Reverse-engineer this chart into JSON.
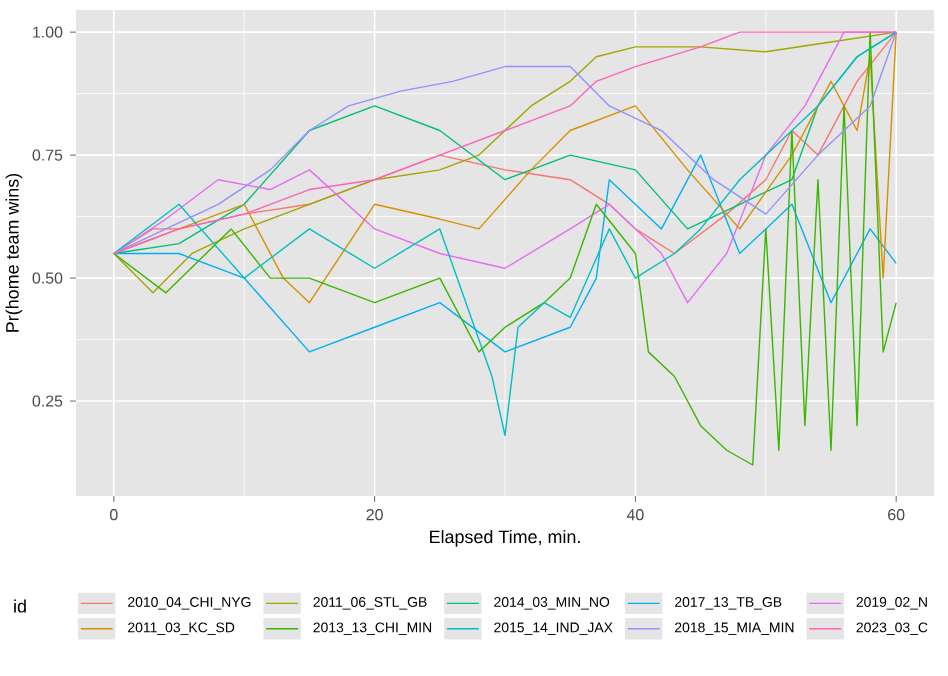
{
  "chart_data": {
    "type": "line",
    "xlabel": "Elapsed Time, min.",
    "ylabel": "Pr(home team wins)",
    "legend_title": "id",
    "xlim": [
      -2.9,
      62.9
    ],
    "ylim": [
      0.057,
      1.045
    ],
    "xticks": [
      0,
      20,
      40,
      60
    ],
    "yticks": [
      {
        "value": 0.25,
        "label": "0.25"
      },
      {
        "value": 0.5,
        "label": "0.50"
      },
      {
        "value": 0.75,
        "label": "0.75"
      },
      {
        "value": 1,
        "label": "1.00"
      }
    ],
    "grid": true,
    "legend": "bottom",
    "line_style": "solid",
    "series": [
      {
        "name": "2010_04_CHI_NYG",
        "color": "#F8766D",
        "x": [
          0,
          3,
          5,
          10,
          15,
          20,
          25,
          30,
          35,
          38,
          40,
          43,
          47,
          50,
          52,
          54,
          57,
          60
        ],
        "values": [
          0.55,
          0.6,
          0.6,
          0.63,
          0.65,
          0.7,
          0.75,
          0.72,
          0.7,
          0.65,
          0.6,
          0.55,
          0.63,
          0.7,
          0.8,
          0.75,
          0.9,
          1.0
        ]
      },
      {
        "name": "2011_03_KC_SD",
        "color": "#D89000",
        "x": [
          0,
          5,
          10,
          13,
          15,
          20,
          25,
          28,
          32,
          35,
          40,
          44,
          48,
          52,
          55,
          57,
          58,
          59,
          60
        ],
        "values": [
          0.55,
          0.6,
          0.65,
          0.5,
          0.45,
          0.65,
          0.62,
          0.6,
          0.72,
          0.8,
          0.85,
          0.72,
          0.6,
          0.75,
          0.9,
          0.8,
          0.95,
          0.5,
          1.0
        ]
      },
      {
        "name": "2011_06_STL_GB",
        "color": "#A3A500",
        "x": [
          0,
          3,
          6,
          10,
          15,
          20,
          25,
          28,
          32,
          35,
          37,
          40,
          45,
          50,
          55,
          60
        ],
        "values": [
          0.55,
          0.47,
          0.55,
          0.6,
          0.65,
          0.7,
          0.72,
          0.75,
          0.85,
          0.9,
          0.95,
          0.97,
          0.97,
          0.96,
          0.98,
          1.0
        ]
      },
      {
        "name": "2013_13_CHI_MIN",
        "color": "#39B600",
        "x": [
          0,
          4,
          9,
          12,
          15,
          20,
          25,
          28,
          30,
          33,
          35,
          37,
          40,
          41,
          43,
          45,
          47,
          49,
          50,
          51,
          52,
          53,
          54,
          55,
          56,
          57,
          58,
          59,
          60
        ],
        "values": [
          0.55,
          0.47,
          0.6,
          0.5,
          0.5,
          0.45,
          0.5,
          0.35,
          0.4,
          0.45,
          0.5,
          0.65,
          0.55,
          0.35,
          0.3,
          0.2,
          0.15,
          0.12,
          0.6,
          0.15,
          0.8,
          0.2,
          0.7,
          0.15,
          0.85,
          0.2,
          1.0,
          0.35,
          0.45
        ]
      },
      {
        "name": "2014_03_MIN_NO",
        "color": "#00BF7D",
        "x": [
          0,
          5,
          10,
          15,
          20,
          25,
          30,
          35,
          40,
          44,
          48,
          52,
          54,
          57,
          60
        ],
        "values": [
          0.55,
          0.57,
          0.65,
          0.8,
          0.85,
          0.8,
          0.7,
          0.75,
          0.72,
          0.6,
          0.65,
          0.7,
          0.85,
          0.95,
          1.0
        ]
      },
      {
        "name": "2015_14_IND_JAX",
        "color": "#00BFC4",
        "x": [
          0,
          5,
          10,
          15,
          20,
          25,
          29,
          30,
          31,
          33,
          35,
          38,
          40,
          43,
          45,
          48,
          52,
          54,
          57,
          60
        ],
        "values": [
          0.55,
          0.65,
          0.5,
          0.6,
          0.52,
          0.6,
          0.3,
          0.18,
          0.4,
          0.45,
          0.42,
          0.6,
          0.5,
          0.55,
          0.6,
          0.7,
          0.8,
          0.85,
          0.95,
          1.0
        ]
      },
      {
        "name": "2017_13_TB_GB",
        "color": "#00B0F6",
        "x": [
          0,
          5,
          10,
          15,
          20,
          25,
          30,
          35,
          37,
          38,
          42,
          45,
          48,
          50,
          52,
          55,
          58,
          60
        ],
        "values": [
          0.55,
          0.55,
          0.5,
          0.35,
          0.4,
          0.45,
          0.35,
          0.4,
          0.5,
          0.7,
          0.6,
          0.75,
          0.55,
          0.6,
          0.65,
          0.45,
          0.6,
          0.53
        ]
      },
      {
        "name": "2018_15_MIA_MIN",
        "color": "#9590FF",
        "x": [
          0,
          4,
          8,
          12,
          15,
          18,
          22,
          26,
          30,
          33,
          35,
          38,
          42,
          46,
          50,
          54,
          58,
          60
        ],
        "values": [
          0.55,
          0.6,
          0.65,
          0.72,
          0.8,
          0.85,
          0.88,
          0.9,
          0.93,
          0.93,
          0.93,
          0.85,
          0.8,
          0.7,
          0.63,
          0.75,
          0.85,
          1.0
        ]
      },
      {
        "name": "2019_02_N",
        "color": "#E76BF3",
        "x": [
          0,
          4,
          8,
          12,
          15,
          20,
          25,
          30,
          35,
          38,
          42,
          44,
          47,
          50,
          53,
          56,
          60
        ],
        "values": [
          0.55,
          0.62,
          0.7,
          0.68,
          0.72,
          0.6,
          0.55,
          0.52,
          0.6,
          0.65,
          0.55,
          0.45,
          0.55,
          0.75,
          0.85,
          1.0,
          1.0
        ]
      },
      {
        "name": "2023_03_C",
        "color": "#FF62BC",
        "x": [
          0,
          5,
          10,
          15,
          20,
          25,
          30,
          35,
          37,
          40,
          45,
          48,
          52,
          56,
          60
        ],
        "values": [
          0.55,
          0.6,
          0.63,
          0.68,
          0.7,
          0.75,
          0.8,
          0.85,
          0.9,
          0.93,
          0.97,
          1.0,
          1.0,
          1.0,
          1.0
        ]
      }
    ]
  }
}
